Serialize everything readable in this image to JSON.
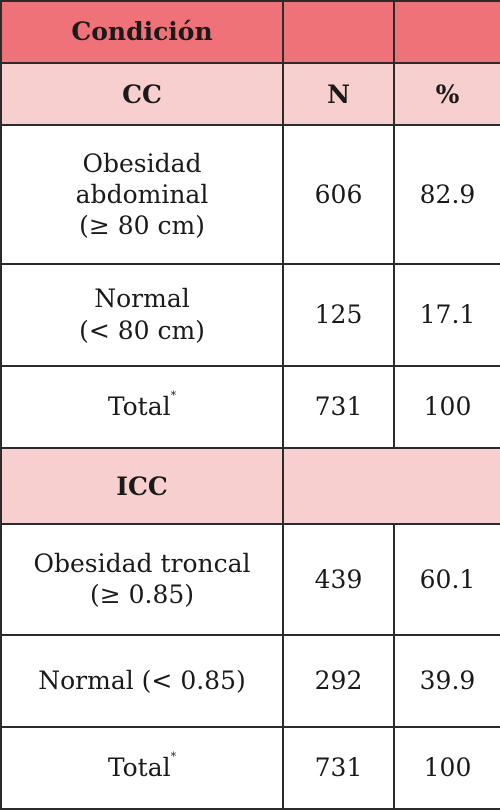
{
  "table": {
    "header": {
      "condicion": "Condición",
      "n": "",
      "pct": ""
    },
    "cc_header": {
      "label": "CC",
      "n": "N",
      "pct": "%"
    },
    "cc_rows": [
      {
        "line1": "Obesidad",
        "line2": "abdominal",
        "line3": "(≥ 80 cm)",
        "n": "606",
        "pct": "82.9"
      },
      {
        "line1": "Normal",
        "line2": "(< 80 cm)",
        "n": "125",
        "pct": "17.1"
      },
      {
        "label": "Total",
        "mark": "*",
        "n": "731",
        "pct": "100"
      }
    ],
    "icc_header": {
      "label": "ICC"
    },
    "icc_rows": [
      {
        "line1": "Obesidad troncal",
        "line2": "(≥ 0.85)",
        "n": "439",
        "pct": "60.1"
      },
      {
        "line1": "Normal (< 0.85)",
        "n": "292",
        "pct": "39.9"
      },
      {
        "label": "Total",
        "mark": "*",
        "n": "731",
        "pct": "100"
      }
    ],
    "colors": {
      "header_bg": "#f07279",
      "subheader_bg": "#f8cfcf",
      "border": "#2b2b2b"
    }
  }
}
